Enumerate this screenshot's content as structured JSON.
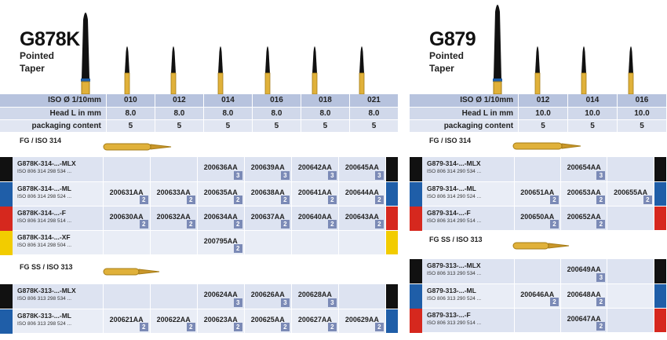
{
  "panels": [
    {
      "title": "G878K",
      "subtitle_lines": [
        "Pointed",
        "Taper"
      ],
      "spec": {
        "headers": [
          {
            "label": "ISO Ø 1/10mm",
            "values": [
              "010",
              "012",
              "014",
              "016",
              "018",
              "021"
            ]
          },
          {
            "label": "Head L in mm",
            "values": [
              "8.0",
              "8.0",
              "8.0",
              "8.0",
              "8.0",
              "8.0"
            ]
          },
          {
            "label": "packaging content",
            "values": [
              "5",
              "5",
              "5",
              "5",
              "5",
              "5"
            ]
          }
        ]
      },
      "sections": [
        {
          "label": "FG / ISO 314",
          "rows": [
            {
              "name": "G878K-314-...-MLX",
              "iso": "ISO 806 314 298 534 ...",
              "color": "#111111",
              "cells": [
                null,
                null,
                {
                  "ref": "200636AA",
                  "pack": "3"
                },
                {
                  "ref": "200639AA",
                  "pack": "3"
                },
                {
                  "ref": "200642AA",
                  "pack": "3"
                },
                {
                  "ref": "200645AA",
                  "pack": "3"
                }
              ]
            },
            {
              "name": "G878K-314-...-ML",
              "iso": "ISO 806 314 298 524 ...",
              "color": "#1f5ea8",
              "cells": [
                {
                  "ref": "200631AA",
                  "pack": "2"
                },
                {
                  "ref": "200633AA",
                  "pack": "2"
                },
                {
                  "ref": "200635AA",
                  "pack": "2"
                },
                {
                  "ref": "200638AA",
                  "pack": "2"
                },
                {
                  "ref": "200641AA",
                  "pack": "2"
                },
                {
                  "ref": "200644AA",
                  "pack": "2"
                }
              ]
            },
            {
              "name": "G878K-314-...-F",
              "iso": "ISO 806 314 298 514 ...",
              "color": "#d6281e",
              "cells": [
                {
                  "ref": "200630AA",
                  "pack": "2"
                },
                {
                  "ref": "200632AA",
                  "pack": "2"
                },
                {
                  "ref": "200634AA",
                  "pack": "2"
                },
                {
                  "ref": "200637AA",
                  "pack": "2"
                },
                {
                  "ref": "200640AA",
                  "pack": "2"
                },
                {
                  "ref": "200643AA",
                  "pack": "2"
                }
              ]
            },
            {
              "name": "G878K-314-...-XF",
              "iso": "ISO 806 314 298 504 ...",
              "color": "#f2cc00",
              "cells": [
                null,
                null,
                {
                  "ref": "200795AA",
                  "pack": "2"
                },
                null,
                null,
                null
              ]
            }
          ]
        },
        {
          "label": "FG SS / ISO 313",
          "rows": [
            {
              "name": "G878K-313-...-MLX",
              "iso": "ISO 806 313 298 534 ...",
              "color": "#111111",
              "cells": [
                null,
                null,
                {
                  "ref": "200624AA",
                  "pack": "3"
                },
                {
                  "ref": "200626AA",
                  "pack": "3"
                },
                {
                  "ref": "200628AA",
                  "pack": "3"
                },
                null
              ]
            },
            {
              "name": "G878K-313-...-ML",
              "iso": "ISO 806 313 298 524 ...",
              "color": "#1f5ea8",
              "cells": [
                {
                  "ref": "200621AA",
                  "pack": "2"
                },
                {
                  "ref": "200622AA",
                  "pack": "2"
                },
                {
                  "ref": "200623AA",
                  "pack": "2"
                },
                {
                  "ref": "200625AA",
                  "pack": "2"
                },
                {
                  "ref": "200627AA",
                  "pack": "2"
                },
                {
                  "ref": "200629AA",
                  "pack": "2"
                }
              ]
            }
          ]
        }
      ]
    },
    {
      "title": "G879",
      "subtitle_lines": [
        "Pointed",
        "Taper"
      ],
      "spec": {
        "headers": [
          {
            "label": "ISO Ø 1/10mm",
            "values": [
              "012",
              "014",
              "016"
            ]
          },
          {
            "label": "Head L in mm",
            "values": [
              "10.0",
              "10.0",
              "10.0"
            ]
          },
          {
            "label": "packaging content",
            "values": [
              "5",
              "5",
              "5"
            ]
          }
        ]
      },
      "sections": [
        {
          "label": "FG / ISO 314",
          "rows": [
            {
              "name": "G879-314-...-MLX",
              "iso": "ISO 806 314 290 534 ...",
              "color": "#111111",
              "cells": [
                null,
                {
                  "ref": "200654AA",
                  "pack": "3"
                },
                null
              ]
            },
            {
              "name": "G879-314-...-ML",
              "iso": "ISO 806 314 290 524 ...",
              "color": "#1f5ea8",
              "cells": [
                {
                  "ref": "200651AA",
                  "pack": "2"
                },
                {
                  "ref": "200653AA",
                  "pack": "2"
                },
                {
                  "ref": "200655AA",
                  "pack": "2"
                }
              ]
            },
            {
              "name": "G879-314-...-F",
              "iso": "ISO 806 314 290 514 ...",
              "color": "#d6281e",
              "cells": [
                {
                  "ref": "200650AA",
                  "pack": "2"
                },
                {
                  "ref": "200652AA",
                  "pack": "2"
                },
                null
              ]
            }
          ]
        },
        {
          "label": "FG SS / ISO 313",
          "rows": [
            {
              "name": "G879-313-...-MLX",
              "iso": "ISO 806 313 290 534 ...",
              "color": "#111111",
              "cells": [
                null,
                {
                  "ref": "200649AA",
                  "pack": "3"
                },
                null
              ]
            },
            {
              "name": "G879-313-...-ML",
              "iso": "ISO 806 313 290 524 ...",
              "color": "#1f5ea8",
              "cells": [
                {
                  "ref": "200646AA",
                  "pack": "2"
                },
                {
                  "ref": "200648AA",
                  "pack": "2"
                },
                null
              ]
            },
            {
              "name": "G879-313-...-F",
              "iso": "ISO 806 313 290 514 ...",
              "color": "#d6281e",
              "cells": [
                null,
                {
                  "ref": "200647AA",
                  "pack": "2"
                },
                null
              ]
            }
          ]
        }
      ]
    }
  ]
}
